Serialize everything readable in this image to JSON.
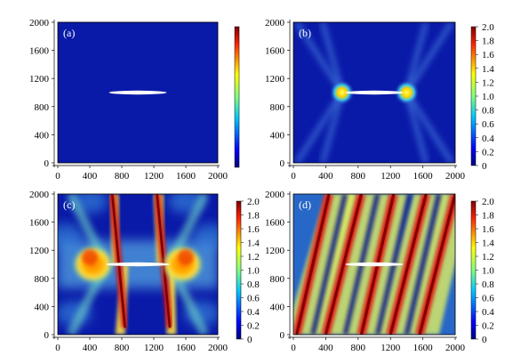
{
  "chart_data": [
    {
      "type": "heatmap",
      "panel_label": "(a)",
      "x_ticks": [
        0,
        400,
        800,
        1200,
        1600,
        2000
      ],
      "y_ticks": [
        0,
        400,
        800,
        1200,
        1600,
        2000
      ],
      "xlim": [
        0,
        2000
      ],
      "ylim": [
        0,
        2000
      ],
      "colorbar": {
        "show_labels": false,
        "ticks": []
      },
      "crack": {
        "x_start": 640,
        "x_end": 1360,
        "y": 1000
      },
      "field": "uniform low damage; only crack visible"
    },
    {
      "type": "heatmap",
      "panel_label": "(b)",
      "x_ticks": [
        0,
        400,
        800,
        1200,
        1600,
        2000
      ],
      "y_ticks": [
        0,
        400,
        800,
        1200,
        1600,
        2000
      ],
      "xlim": [
        0,
        2000
      ],
      "ylim": [
        0,
        2000
      ],
      "colorbar": {
        "show_labels": true,
        "range": [
          0,
          2.0
        ],
        "ticks": [
          "0",
          "0.2",
          "0.4",
          "0.6",
          "0.8",
          "1.0",
          "1.2",
          "1.4",
          "1.6",
          "1.8",
          "2.0"
        ]
      },
      "crack": {
        "x_start": 640,
        "x_end": 1360,
        "y": 1000
      },
      "field": "concentration at crack tips, faint X-shaped bands"
    },
    {
      "type": "heatmap",
      "panel_label": "(c)",
      "x_ticks": [
        0,
        400,
        800,
        1200,
        1600,
        2000
      ],
      "y_ticks": [
        0,
        400,
        800,
        1200,
        1600,
        2000
      ],
      "xlim": [
        0,
        2000
      ],
      "ylim": [
        0,
        2000
      ],
      "colorbar": {
        "show_labels": true,
        "range": [
          0,
          2.0
        ],
        "ticks": [
          "0",
          "0.2",
          "0.4",
          "0.6",
          "0.8",
          "1.0",
          "1.2",
          "1.4",
          "1.6",
          "1.8",
          "2.0"
        ]
      },
      "crack": {
        "x_start": 600,
        "x_end": 1400,
        "y": 1000
      },
      "field": "large lobes at crack tips, inclined bands"
    },
    {
      "type": "heatmap",
      "panel_label": "(d)",
      "x_ticks": [
        0,
        400,
        800,
        1200,
        1600,
        2000
      ],
      "y_ticks": [
        0,
        400,
        800,
        1200,
        1600,
        2000
      ],
      "xlim": [
        0,
        2000
      ],
      "ylim": [
        0,
        2000
      ],
      "colorbar": {
        "show_labels": true,
        "range": [
          0,
          2.0
        ],
        "ticks": [
          "0",
          "0.2",
          "0.4",
          "0.6",
          "0.8",
          "1.0",
          "1.2",
          "1.4",
          "1.6",
          "1.8",
          "2.0"
        ]
      },
      "crack": {
        "x_start": 640,
        "x_end": 1360,
        "y": 1000
      },
      "field": "dense pattern of inclined bands across the domain"
    }
  ]
}
